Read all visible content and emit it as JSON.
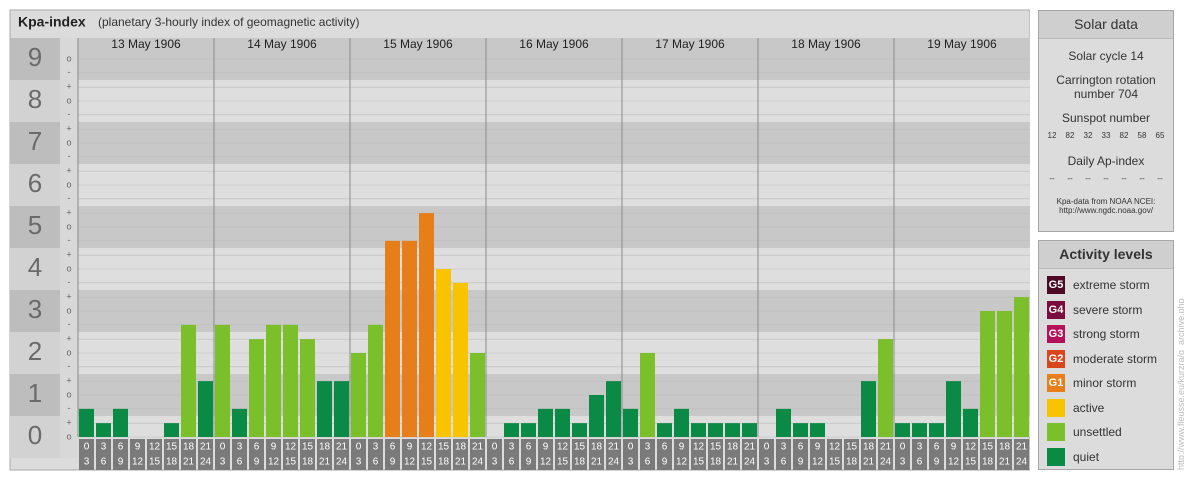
{
  "chart_data": {
    "type": "bar",
    "title": "Kpa-index",
    "subtitle": "(planetary 3-hourly index of geomagnetic activity)",
    "ylim": [
      0,
      9.5
    ],
    "yticks": [
      0,
      1,
      2,
      3,
      4,
      5,
      6,
      7,
      8,
      9
    ],
    "grid": true,
    "minor_ticks": [
      {
        "value": 0,
        "label": "o"
      },
      {
        "value": 0.33,
        "label": "+"
      },
      {
        "value": 0.67,
        "label": "-"
      },
      {
        "value": 1,
        "label": "o"
      },
      {
        "value": 1.33,
        "label": "+"
      },
      {
        "value": 1.67,
        "label": "-"
      },
      {
        "value": 2,
        "label": "o"
      },
      {
        "value": 2.33,
        "label": "+"
      },
      {
        "value": 2.67,
        "label": "-"
      },
      {
        "value": 3,
        "label": "o"
      },
      {
        "value": 3.33,
        "label": "+"
      },
      {
        "value": 3.67,
        "label": "-"
      },
      {
        "value": 4,
        "label": "o"
      },
      {
        "value": 4.33,
        "label": "+"
      },
      {
        "value": 4.67,
        "label": "-"
      },
      {
        "value": 5,
        "label": "o"
      },
      {
        "value": 5.33,
        "label": "+"
      },
      {
        "value": 5.67,
        "label": "-"
      },
      {
        "value": 6,
        "label": "o"
      },
      {
        "value": 6.33,
        "label": "+"
      },
      {
        "value": 6.67,
        "label": "-"
      },
      {
        "value": 7,
        "label": "o"
      },
      {
        "value": 7.33,
        "label": "+"
      },
      {
        "value": 7.67,
        "label": "-"
      },
      {
        "value": 8,
        "label": "o"
      },
      {
        "value": 8.33,
        "label": "+"
      },
      {
        "value": 8.67,
        "label": "-"
      },
      {
        "value": 9,
        "label": "o"
      }
    ],
    "hours": [
      [
        "0",
        "3"
      ],
      [
        "3",
        "6"
      ],
      [
        "6",
        "9"
      ],
      [
        "9",
        "12"
      ],
      [
        "12",
        "15"
      ],
      [
        "15",
        "18"
      ],
      [
        "18",
        "21"
      ],
      [
        "21",
        "24"
      ]
    ],
    "days": [
      {
        "date": "13 May 1906",
        "values": [
          0.67,
          0.33,
          0.67,
          0,
          0,
          0.33,
          2.67,
          1.33
        ],
        "levels": [
          "quiet",
          "quiet",
          "quiet",
          "quiet",
          "quiet",
          "quiet",
          "unsettled",
          "quiet"
        ]
      },
      {
        "date": "14 May 1906",
        "values": [
          2.67,
          0.67,
          2.33,
          2.67,
          2.67,
          2.33,
          1.33,
          1.33
        ],
        "levels": [
          "unsettled",
          "quiet",
          "unsettled",
          "unsettled",
          "unsettled",
          "unsettled",
          "quiet",
          "quiet"
        ]
      },
      {
        "date": "15 May 1906",
        "values": [
          2,
          2.67,
          4.67,
          4.67,
          5.33,
          4,
          3.67,
          2
        ],
        "levels": [
          "unsettled",
          "unsettled",
          "minor storm",
          "minor storm",
          "minor storm",
          "active",
          "active",
          "unsettled"
        ]
      },
      {
        "date": "16 May 1906",
        "values": [
          0,
          0.33,
          0.33,
          0.67,
          0.67,
          0.33,
          1,
          1.33
        ],
        "levels": [
          "quiet",
          "quiet",
          "quiet",
          "quiet",
          "quiet",
          "quiet",
          "quiet",
          "quiet"
        ]
      },
      {
        "date": "17 May 1906",
        "values": [
          0.67,
          2,
          0.33,
          0.67,
          0.33,
          0.33,
          0.33,
          0.33
        ],
        "levels": [
          "quiet",
          "unsettled",
          "quiet",
          "quiet",
          "quiet",
          "quiet",
          "quiet",
          "quiet"
        ]
      },
      {
        "date": "18 May 1906",
        "values": [
          0,
          0.67,
          0.33,
          0.33,
          0,
          0,
          1.33,
          2.33
        ],
        "levels": [
          "quiet",
          "quiet",
          "quiet",
          "quiet",
          "quiet",
          "quiet",
          "quiet",
          "unsettled"
        ]
      },
      {
        "date": "19 May 1906",
        "values": [
          0.33,
          0.33,
          0.33,
          1.33,
          0.67,
          3,
          3,
          3.33
        ],
        "levels": [
          "quiet",
          "quiet",
          "quiet",
          "quiet",
          "quiet",
          "unsettled",
          "unsettled",
          "unsettled"
        ]
      }
    ]
  },
  "solar": {
    "title": "Solar data",
    "cycle": "Solar cycle 14",
    "rotation": "Carrington rotation number 704",
    "sunspot_label": "Sunspot number",
    "sunspots": [
      12,
      82,
      32,
      33,
      82,
      58,
      65
    ],
    "ap_label": "Daily Ap-index",
    "ap": [
      "--",
      "--",
      "--",
      "--",
      "--",
      "--",
      "--"
    ],
    "source": "Kpa-data from NOAA NCEI:",
    "url": "http://www.ngdc.noaa.gov/"
  },
  "activity": {
    "title": "Activity levels",
    "levels": [
      {
        "badge": "G5",
        "name": "extreme storm",
        "color": "#4d0a24"
      },
      {
        "badge": "G4",
        "name": "severe storm",
        "color": "#7a0c3e"
      },
      {
        "badge": "G3",
        "name": "strong storm",
        "color": "#b3125a"
      },
      {
        "badge": "G2",
        "name": "moderate storm",
        "color": "#d9461e"
      },
      {
        "badge": "G1",
        "name": "minor storm",
        "color": "#e67e1a"
      },
      {
        "name": "active",
        "color": "#f8c400"
      },
      {
        "name": "unsettled",
        "color": "#7bbf2b"
      },
      {
        "name": "quiet",
        "color": "#0b8a46"
      }
    ]
  },
  "watermark": "http://www.fleusse.eu/kurzra/g_archive.php"
}
